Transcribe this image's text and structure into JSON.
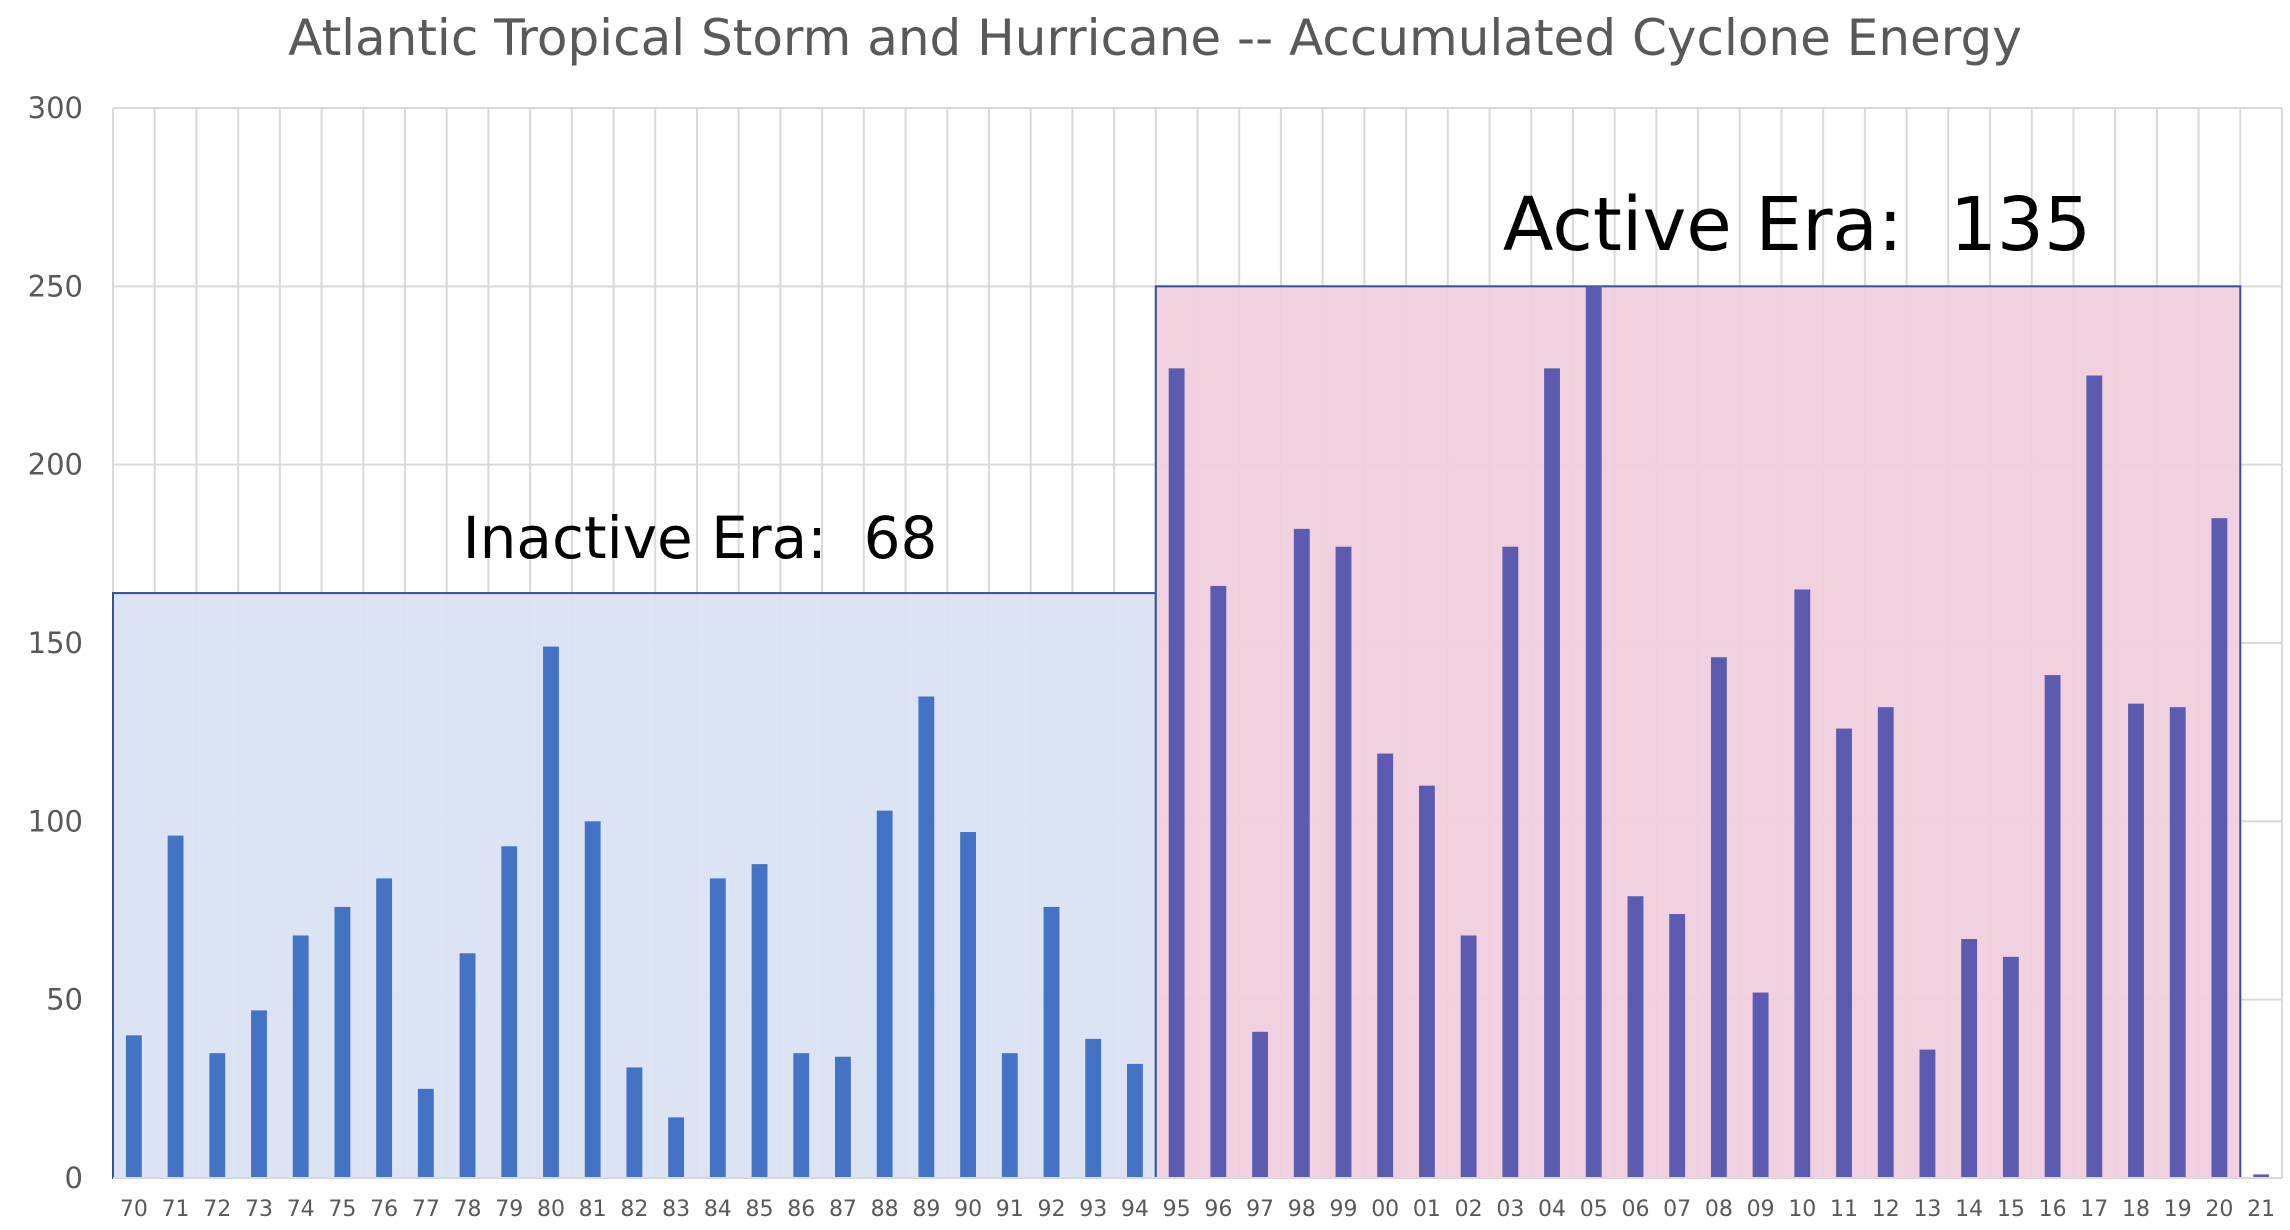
{
  "chart_data": {
    "type": "bar",
    "title": "Atlantic Tropical Storm and Hurricane -- Accumulated Cyclone Energy",
    "xlabel": "",
    "ylabel": "",
    "ylim": [
      0,
      300
    ],
    "yticks": [
      "0",
      "50",
      "100",
      "150",
      "200",
      "250",
      "300"
    ],
    "grid": true,
    "categories": [
      "70",
      "71",
      "72",
      "73",
      "74",
      "75",
      "76",
      "77",
      "78",
      "79",
      "80",
      "81",
      "82",
      "83",
      "84",
      "85",
      "86",
      "87",
      "88",
      "89",
      "90",
      "91",
      "92",
      "93",
      "94",
      "95",
      "96",
      "97",
      "98",
      "99",
      "00",
      "01",
      "02",
      "03",
      "04",
      "05",
      "06",
      "07",
      "08",
      "09",
      "10",
      "11",
      "12",
      "13",
      "14",
      "15",
      "16",
      "17",
      "18",
      "19",
      "20",
      "21"
    ],
    "values": [
      40,
      96,
      35,
      47,
      68,
      76,
      84,
      25,
      63,
      93,
      149,
      100,
      31,
      17,
      84,
      88,
      35,
      34,
      103,
      135,
      97,
      35,
      76,
      39,
      32,
      227,
      166,
      41,
      182,
      177,
      119,
      110,
      68,
      177,
      227,
      250,
      79,
      74,
      146,
      52,
      165,
      126,
      132,
      36,
      67,
      62,
      141,
      225,
      133,
      132,
      185,
      1
    ],
    "series_colors": {
      "inactive": "#4472C4",
      "active": "#5B5BAF"
    },
    "eras": [
      {
        "label": "Inactive Era:  68",
        "value": 164,
        "start": "70",
        "end": "94",
        "fill": "#DAE3F3",
        "border": "#2F5597"
      },
      {
        "label": "Active Era:  135",
        "value": 250,
        "start": "95",
        "end": "20",
        "fill": "#F0CFDD",
        "border": "#2F5597"
      }
    ]
  }
}
